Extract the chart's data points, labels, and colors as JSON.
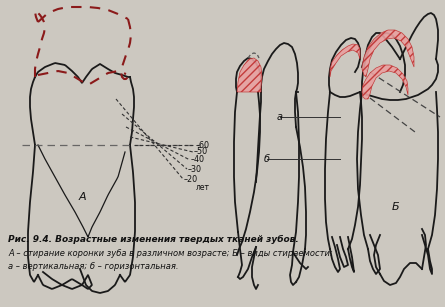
{
  "bg_color": "#ccc8c0",
  "fig_width": 4.45,
  "fig_height": 3.07,
  "dpi": 100,
  "caption_line1": "Рис. 9.4. Возрастные изменения твердых тканей зубов.",
  "caption_line2": "А – стирание коронки зуба в различном возрасте; Б – виды стираемости:",
  "caption_line3": "а – вертикальная; б – горизонтальная.",
  "outline_color": "#1a1a1a",
  "dashed_red": "#8b1a1a",
  "hatch_color": "#c03030",
  "hatch_fill": "#e8a0a0",
  "text_color": "#111111",
  "ages": [
    "60",
    "50",
    "40",
    "30",
    "20"
  ],
  "age_label": "лет"
}
